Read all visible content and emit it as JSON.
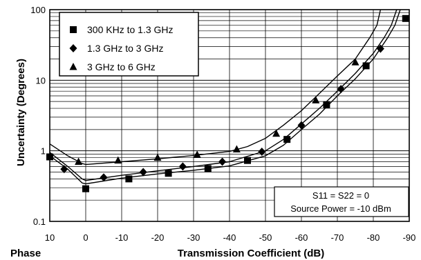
{
  "chart_data": {
    "type": "scatter",
    "title": "",
    "xlabel": "Transmission Coefficient (dB)",
    "corner_label": "Phase",
    "ylabel": "Uncertainty (Degrees)",
    "x_range": [
      10,
      -90
    ],
    "y_range": [
      0.1,
      100
    ],
    "y_scale": "log",
    "x_ticks": [
      "10",
      "0",
      "-10",
      "-20",
      "-30",
      "-40",
      "-50",
      "-60",
      "-70",
      "-80",
      "-90"
    ],
    "x_tick_values": [
      10,
      0,
      -10,
      -20,
      -30,
      -40,
      -50,
      -60,
      -70,
      -80,
      -90
    ],
    "y_ticks": [
      "0.1",
      "1",
      "10",
      "100"
    ],
    "y_tick_values": [
      0.1,
      1,
      10,
      100
    ],
    "grid": true,
    "legend_position": "top-left",
    "series": [
      {
        "name": "300 KHz to 1.3 GHz",
        "marker": "square",
        "points": [
          [
            10,
            0.82
          ],
          [
            0,
            0.29
          ],
          [
            -12,
            0.4
          ],
          [
            -23,
            0.48
          ],
          [
            -34,
            0.56
          ],
          [
            -45,
            0.73
          ],
          [
            -56,
            1.45
          ],
          [
            -67,
            4.5
          ],
          [
            -78,
            16
          ],
          [
            -89,
            75
          ]
        ],
        "curve": [
          [
            10,
            0.85
          ],
          [
            5,
            0.55
          ],
          [
            1,
            0.35
          ],
          [
            0,
            0.34
          ],
          [
            -10,
            0.41
          ],
          [
            -20,
            0.47
          ],
          [
            -30,
            0.53
          ],
          [
            -40,
            0.61
          ],
          [
            -50,
            0.85
          ],
          [
            -55,
            1.2
          ],
          [
            -60,
            2.0
          ],
          [
            -65,
            3.3
          ],
          [
            -70,
            6.0
          ],
          [
            -75,
            10.5
          ],
          [
            -80,
            20
          ],
          [
            -84,
            40
          ],
          [
            -86,
            60
          ],
          [
            -87.5,
            100
          ]
        ]
      },
      {
        "name": "1.3 GHz to 3 GHz",
        "marker": "diamond",
        "points": [
          [
            6,
            0.55
          ],
          [
            -5,
            0.42
          ],
          [
            -16,
            0.5
          ],
          [
            -27,
            0.6
          ],
          [
            -38,
            0.7
          ],
          [
            -49,
            0.97
          ],
          [
            -60,
            2.3
          ],
          [
            -71,
            7.5
          ],
          [
            -82,
            28
          ]
        ],
        "curve": [
          [
            10,
            0.95
          ],
          [
            5,
            0.6
          ],
          [
            1,
            0.4
          ],
          [
            0,
            0.38
          ],
          [
            -10,
            0.45
          ],
          [
            -20,
            0.52
          ],
          [
            -30,
            0.6
          ],
          [
            -40,
            0.7
          ],
          [
            -50,
            1.0
          ],
          [
            -55,
            1.45
          ],
          [
            -60,
            2.4
          ],
          [
            -65,
            4.0
          ],
          [
            -70,
            7.0
          ],
          [
            -75,
            12.5
          ],
          [
            -80,
            24
          ],
          [
            -83,
            40
          ],
          [
            -85,
            60
          ],
          [
            -86.5,
            100
          ]
        ]
      },
      {
        "name": "3 GHz to 6 GHz",
        "marker": "triangle",
        "points": [
          [
            2,
            0.7
          ],
          [
            -9,
            0.73
          ],
          [
            -20,
            0.8
          ],
          [
            -31,
            0.88
          ],
          [
            -42,
            1.05
          ],
          [
            -53,
            1.75
          ],
          [
            -64,
            5.2
          ],
          [
            -75,
            18
          ]
        ],
        "curve": [
          [
            10,
            1.25
          ],
          [
            5,
            0.85
          ],
          [
            1,
            0.66
          ],
          [
            0,
            0.64
          ],
          [
            -10,
            0.7
          ],
          [
            -20,
            0.77
          ],
          [
            -30,
            0.86
          ],
          [
            -40,
            0.98
          ],
          [
            -45,
            1.15
          ],
          [
            -50,
            1.5
          ],
          [
            -55,
            2.3
          ],
          [
            -60,
            3.7
          ],
          [
            -65,
            6.5
          ],
          [
            -70,
            11.5
          ],
          [
            -75,
            20
          ],
          [
            -79,
            40
          ],
          [
            -81,
            60
          ],
          [
            -82,
            100
          ]
        ]
      }
    ],
    "annotations": [
      "S11 = S22 = 0",
      "Source Power = -10 dBm"
    ]
  }
}
